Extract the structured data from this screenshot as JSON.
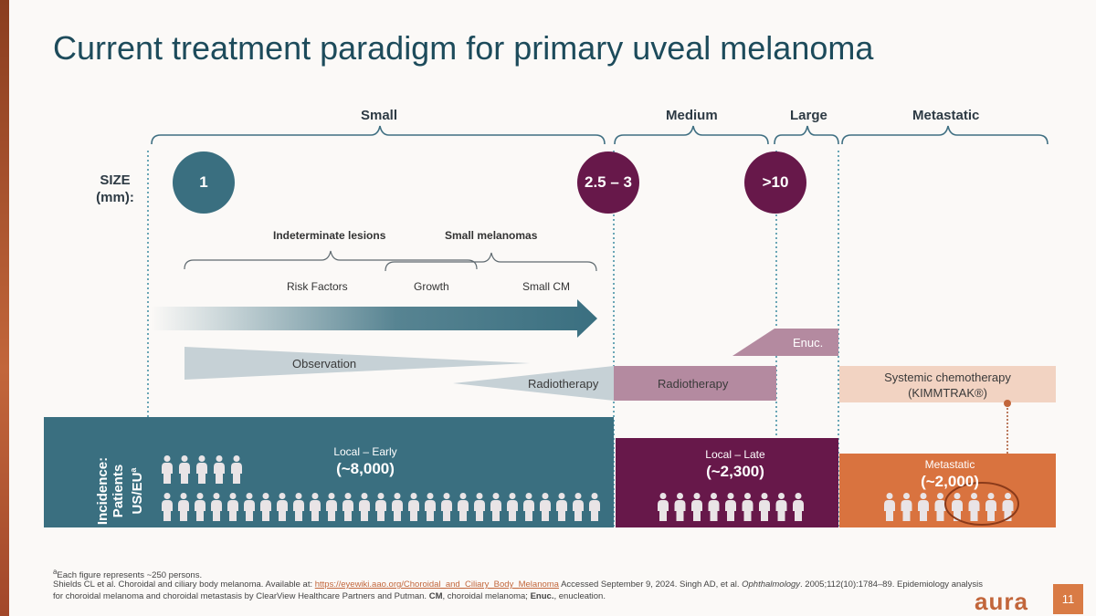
{
  "title": "Current treatment paradigm for primary uveal melanoma",
  "categories": {
    "small": "Small",
    "medium": "Medium",
    "large": "Large",
    "metastatic": "Metastatic"
  },
  "size": {
    "label_line1": "SIZE",
    "label_line2": "(mm):",
    "markers": [
      "1",
      "2.5 – 3",
      ">10"
    ]
  },
  "subgroups": {
    "indeterminate": "Indeterminate lesions",
    "small_melanomas": "Small melanomas",
    "risk_factors": "Risk Factors",
    "growth": "Growth",
    "small_cm": "Small CM"
  },
  "treatments": {
    "enucleation": "Enuc.",
    "observation": "Observation",
    "radiotherapy_left": "Radiotherapy",
    "radiotherapy_right": "Radiotherapy",
    "chemo_line1": "Systemic chemotherapy",
    "chemo_line2": "(KIMMTRAK®)"
  },
  "incidence": {
    "axis_line1": "Incidence:",
    "axis_line2": "Patients",
    "axis_line3": "US/EU",
    "axis_sup": "a",
    "panels": [
      {
        "label": "Local – Early",
        "count": "(~8,000)",
        "color": "#3a6f80",
        "figures": 32
      },
      {
        "label": "Local – Late",
        "count": "(~2,300)",
        "color": "#67184a",
        "figures": 9
      },
      {
        "label": "Metastatic",
        "count": "(~2,000)",
        "color": "#d9733f",
        "figures": 8
      }
    ]
  },
  "colors": {
    "teal": "#3a6f80",
    "plum": "#67184a",
    "orange": "#d9733f",
    "mauve": "#b48aa0",
    "peach": "#f2d3c2",
    "grey": "#c6d1d6"
  },
  "footnotes": {
    "sup": "a",
    "note1": "Each figure represents ~250 persons.",
    "note2_pre": "Shields CL et al. Choroidal and ciliary body melanoma. Available at: ",
    "note2_link": "https://eyewiki.aao.org/Choroidal_and_Ciliary_Body_Melanoma",
    "note2_post": " Accessed September 9, 2024. Singh AD, et al. ",
    "note2_journal": "Ophthalmology",
    "note2_tail": ". 2005;112(10):1784–89. Epidemiology analysis",
    "note3_pre": "for choroidal melanoma and choroidal metastasis by ClearView Healthcare Partners and Putman. ",
    "note3_cm": "CM",
    "note3_mid": ", choroidal melanoma; ",
    "note3_enuc": "Enuc.",
    "note3_post": ", enucleation."
  },
  "logo": "aura",
  "page_number": "11"
}
